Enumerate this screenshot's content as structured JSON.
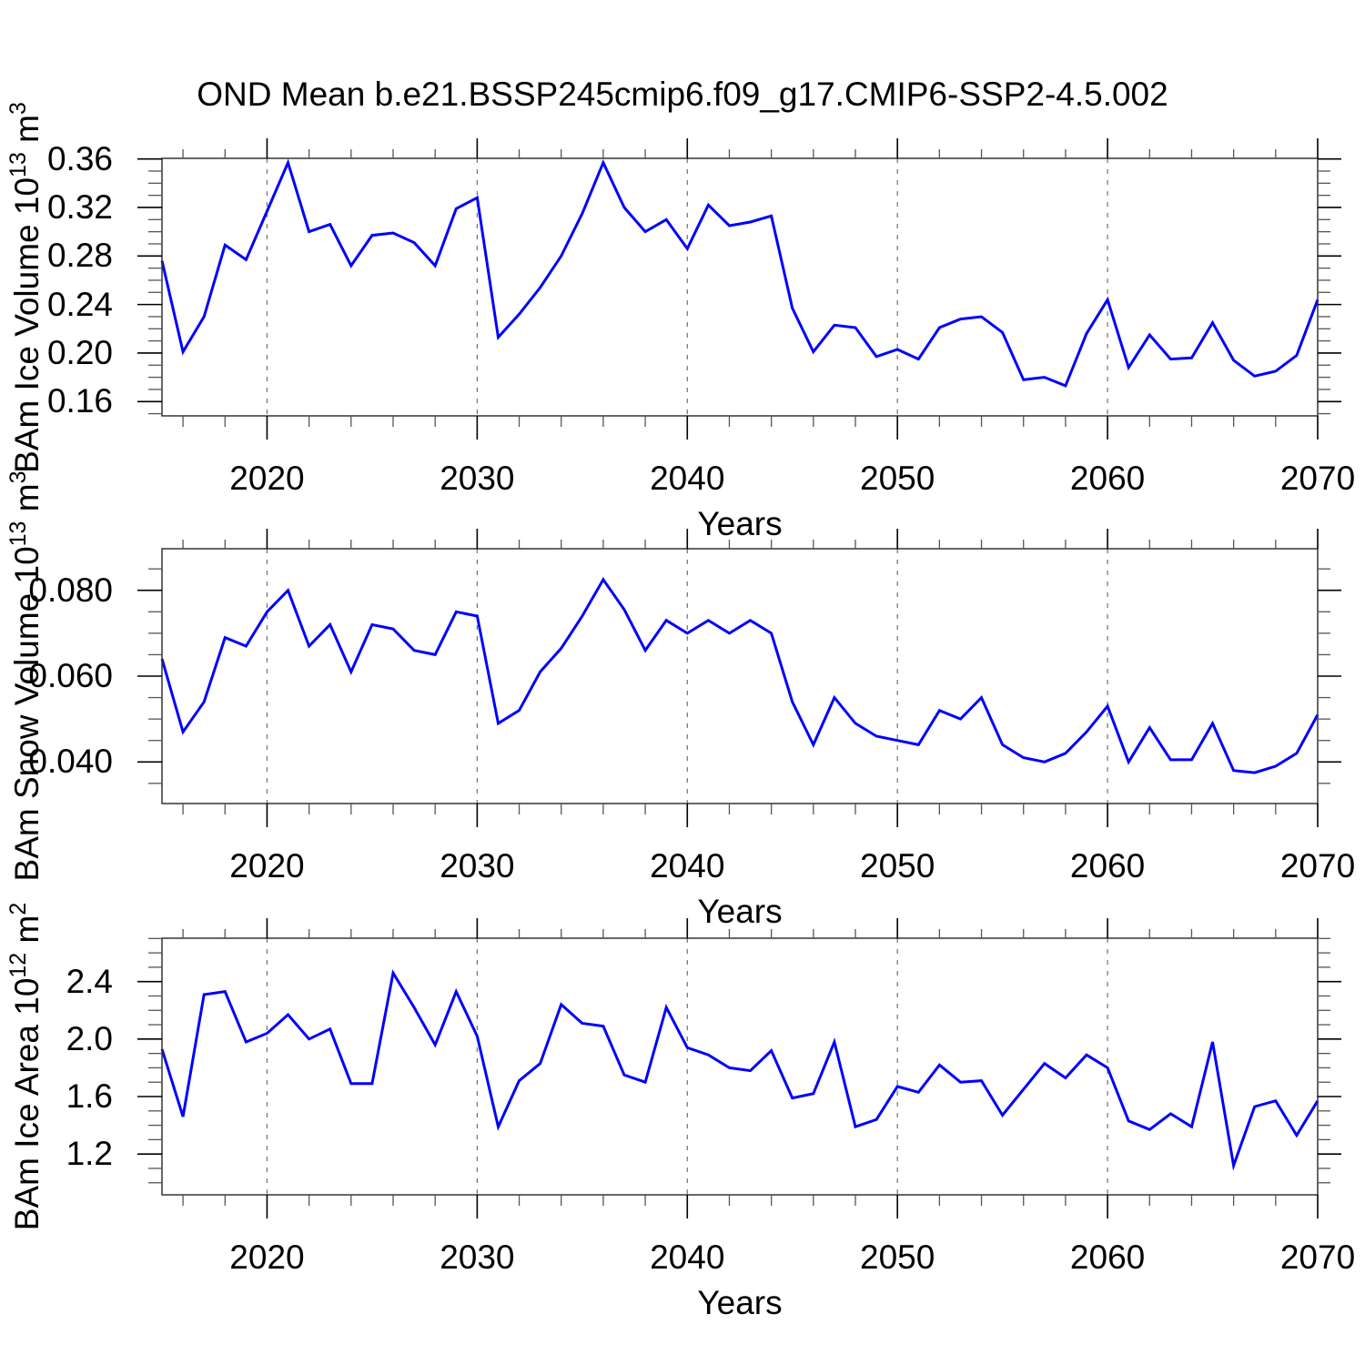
{
  "title": "OND Mean b.e21.BSSP245cmip6.f09_g17.CMIP6-SSP2-4.5.002",
  "colors": {
    "line": "#0000ff",
    "frame": "#333333",
    "major_tick": "#000000",
    "minor_tick": "#555555",
    "grid": "#707070",
    "text": "#000000"
  },
  "x_axis": {
    "label": "Years",
    "range": [
      2015,
      2070
    ],
    "major_tick_years": [
      2020,
      2030,
      2040,
      2050,
      2060,
      2070
    ],
    "major_tick_labels": [
      "2020",
      "2030",
      "2040",
      "2050",
      "2060",
      "2070"
    ],
    "minor_tick_step": 2,
    "grid_years": [
      2020,
      2030,
      2040,
      2050,
      2060
    ]
  },
  "chart_data": [
    {
      "type": "line",
      "name": "BAm Ice Volume",
      "ylabel_segments": [
        {
          "text": "BAm Ice Volume 10"
        },
        {
          "text": "13",
          "sup": true
        },
        {
          "text": " m"
        },
        {
          "text": "3",
          "sup": true
        }
      ],
      "ylim": [
        0.1482,
        0.3605
      ],
      "ytick_values": [
        0.16,
        0.2,
        0.24,
        0.28,
        0.32,
        0.36
      ],
      "ytick_labels": [
        "0.16",
        "0.20",
        "0.24",
        "0.28",
        "0.32",
        "0.36"
      ],
      "y_minor_step": 0.01,
      "grid": "x-dashed",
      "legend": "none",
      "x": [
        2015,
        2016,
        2017,
        2018,
        2019,
        2020,
        2021,
        2022,
        2023,
        2024,
        2025,
        2026,
        2027,
        2028,
        2029,
        2030,
        2031,
        2032,
        2033,
        2034,
        2035,
        2036,
        2037,
        2038,
        2039,
        2040,
        2041,
        2042,
        2043,
        2044,
        2045,
        2046,
        2047,
        2048,
        2049,
        2050,
        2051,
        2052,
        2053,
        2054,
        2055,
        2056,
        2057,
        2058,
        2059,
        2060,
        2061,
        2062,
        2063,
        2064,
        2065,
        2066,
        2067,
        2068,
        2069,
        2070
      ],
      "values": [
        0.276,
        0.201,
        0.23,
        0.289,
        0.277,
        0.317,
        0.357,
        0.3,
        0.306,
        0.272,
        0.297,
        0.299,
        0.291,
        0.272,
        0.319,
        0.328,
        0.213,
        0.232,
        0.254,
        0.28,
        0.315,
        0.357,
        0.32,
        0.3,
        0.31,
        0.286,
        0.322,
        0.305,
        0.308,
        0.313,
        0.237,
        0.201,
        0.223,
        0.221,
        0.197,
        0.203,
        0.195,
        0.221,
        0.228,
        0.23,
        0.217,
        0.178,
        0.18,
        0.173,
        0.216,
        0.244,
        0.188,
        0.215,
        0.195,
        0.196,
        0.225,
        0.194,
        0.181,
        0.185,
        0.198,
        0.244
      ]
    },
    {
      "type": "line",
      "name": "BAm Snow Volume",
      "ylabel_segments": [
        {
          "text": "BAm Snow Volume 10"
        },
        {
          "text": "13",
          "sup": true
        },
        {
          "text": " m"
        },
        {
          "text": "3",
          "sup": true
        }
      ],
      "ylim": [
        0.0303,
        0.0897
      ],
      "ytick_values": [
        0.04,
        0.06,
        0.08
      ],
      "ytick_labels": [
        "0.040",
        "0.060",
        "0.080"
      ],
      "y_minor_step": 0.005,
      "grid": "x-dashed",
      "legend": "none",
      "x": [
        2015,
        2016,
        2017,
        2018,
        2019,
        2020,
        2021,
        2022,
        2023,
        2024,
        2025,
        2026,
        2027,
        2028,
        2029,
        2030,
        2031,
        2032,
        2033,
        2034,
        2035,
        2036,
        2037,
        2038,
        2039,
        2040,
        2041,
        2042,
        2043,
        2044,
        2045,
        2046,
        2047,
        2048,
        2049,
        2050,
        2051,
        2052,
        2053,
        2054,
        2055,
        2056,
        2057,
        2058,
        2059,
        2060,
        2061,
        2062,
        2063,
        2064,
        2065,
        2066,
        2067,
        2068,
        2069,
        2070
      ],
      "values": [
        0.064,
        0.047,
        0.054,
        0.069,
        0.067,
        0.075,
        0.08,
        0.067,
        0.072,
        0.061,
        0.072,
        0.071,
        0.066,
        0.065,
        0.075,
        0.074,
        0.049,
        0.052,
        0.061,
        0.0665,
        0.074,
        0.0825,
        0.0755,
        0.066,
        0.073,
        0.07,
        0.073,
        0.07,
        0.073,
        0.07,
        0.054,
        0.044,
        0.055,
        0.049,
        0.046,
        0.045,
        0.044,
        0.052,
        0.05,
        0.055,
        0.044,
        0.041,
        0.04,
        0.042,
        0.047,
        0.053,
        0.04,
        0.048,
        0.0405,
        0.0405,
        0.049,
        0.038,
        0.0375,
        0.039,
        0.042,
        0.051
      ]
    },
    {
      "type": "line",
      "name": "BAm Ice Area",
      "ylabel_segments": [
        {
          "text": "BAm Ice Area 10"
        },
        {
          "text": "12",
          "sup": true
        },
        {
          "text": " m"
        },
        {
          "text": "2",
          "sup": true
        }
      ],
      "ylim": [
        0.916,
        2.702
      ],
      "ytick_values": [
        1.2,
        1.6,
        2.0,
        2.4
      ],
      "ytick_labels": [
        "1.2",
        "1.6",
        "2.0",
        "2.4"
      ],
      "y_minor_step": 0.1,
      "grid": "x-dashed",
      "legend": "none",
      "x": [
        2015,
        2016,
        2017,
        2018,
        2019,
        2020,
        2021,
        2022,
        2023,
        2024,
        2025,
        2026,
        2027,
        2028,
        2029,
        2030,
        2031,
        2032,
        2033,
        2034,
        2035,
        2036,
        2037,
        2038,
        2039,
        2040,
        2041,
        2042,
        2043,
        2044,
        2045,
        2046,
        2047,
        2048,
        2049,
        2050,
        2051,
        2052,
        2053,
        2054,
        2055,
        2056,
        2057,
        2058,
        2059,
        2060,
        2061,
        2062,
        2063,
        2064,
        2065,
        2066,
        2067,
        2068,
        2069,
        2070
      ],
      "values": [
        1.93,
        1.46,
        2.31,
        2.33,
        1.98,
        2.04,
        2.17,
        2.0,
        2.07,
        1.69,
        1.69,
        2.46,
        2.22,
        1.96,
        2.33,
        2.02,
        1.39,
        1.71,
        1.83,
        2.24,
        2.11,
        2.09,
        1.75,
        1.7,
        2.22,
        1.94,
        1.89,
        1.8,
        1.78,
        1.92,
        1.59,
        1.62,
        1.98,
        1.39,
        1.44,
        1.67,
        1.63,
        1.82,
        1.7,
        1.71,
        1.47,
        1.65,
        1.83,
        1.73,
        1.89,
        1.8,
        1.43,
        1.37,
        1.48,
        1.39,
        1.98,
        1.12,
        1.53,
        1.57,
        1.33,
        1.57
      ]
    }
  ]
}
